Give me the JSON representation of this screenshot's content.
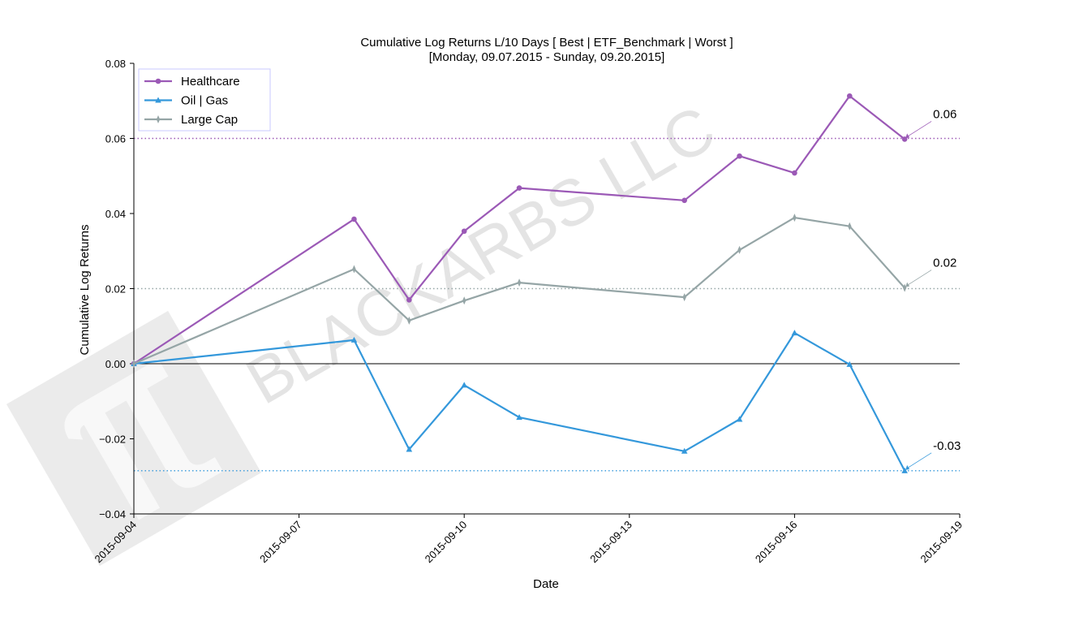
{
  "chart_data": {
    "type": "line",
    "title_line1": "Cumulative Log Returns L/10 Days [ Best | ETF_Benchmark | Worst ]",
    "title_line2": "[Monday, 09.07.2015 - Sunday, 09.20.2015]",
    "xlabel": "Date",
    "ylabel": "Cumulative Log Returns",
    "x_ticks": [
      "2015-09-04",
      "2015-09-07",
      "2015-09-10",
      "2015-09-13",
      "2015-09-16",
      "2015-09-19"
    ],
    "x_range": [
      "2015-09-04",
      "2015-09-19"
    ],
    "y_ticks": [
      "0.08",
      "0.06",
      "0.04",
      "0.02",
      "0.00",
      "−0.02",
      "−0.04"
    ],
    "ylim": [
      -0.04,
      0.08
    ],
    "legend_position": "top-left",
    "series": [
      {
        "name": "Healthcare",
        "color": "#9b59b6",
        "marker": "circle",
        "x": [
          "2015-09-04",
          "2015-09-08",
          "2015-09-09",
          "2015-09-10",
          "2015-09-11",
          "2015-09-14",
          "2015-09-15",
          "2015-09-16",
          "2015-09-17",
          "2015-09-18"
        ],
        "y": [
          0.0,
          0.0385,
          0.017,
          0.0353,
          0.0468,
          0.0435,
          0.0553,
          0.0508,
          0.0713,
          0.0598
        ]
      },
      {
        "name": "Oil | Gas",
        "color": "#3498db",
        "marker": "triangle",
        "x": [
          "2015-09-04",
          "2015-09-08",
          "2015-09-09",
          "2015-09-10",
          "2015-09-11",
          "2015-09-14",
          "2015-09-15",
          "2015-09-16",
          "2015-09-17",
          "2015-09-18"
        ],
        "y": [
          0.0,
          0.0063,
          -0.0228,
          -0.0057,
          -0.0143,
          -0.0233,
          -0.0148,
          0.0082,
          -0.0002,
          -0.0285
        ]
      },
      {
        "name": "Large Cap",
        "color": "#95a5a6",
        "marker": "thin-diamond",
        "x": [
          "2015-09-04",
          "2015-09-08",
          "2015-09-09",
          "2015-09-10",
          "2015-09-11",
          "2015-09-14",
          "2015-09-15",
          "2015-09-16",
          "2015-09-17",
          "2015-09-18"
        ],
        "y": [
          0.0,
          0.0252,
          0.0115,
          0.0168,
          0.0216,
          0.0177,
          0.0303,
          0.0389,
          0.0366,
          0.0202
        ]
      }
    ],
    "reference_lines": [
      {
        "y": 0.06,
        "color": "#9b59b6",
        "style": "dotted"
      },
      {
        "y": 0.02,
        "color": "#95a5a6",
        "style": "dotted"
      },
      {
        "y": -0.0285,
        "color": "#3498db",
        "style": "dotted"
      },
      {
        "y": 0.0,
        "color": "#000000",
        "style": "solid"
      }
    ],
    "annotations": [
      {
        "text": "0.06",
        "series": "Healthcare",
        "x": "2015-09-18",
        "y": 0.0598
      },
      {
        "text": "0.02",
        "series": "Large Cap",
        "x": "2015-09-18",
        "y": 0.0202
      },
      {
        "text": "-0.03",
        "series": "Oil | Gas",
        "x": "2015-09-18",
        "y": -0.0285
      }
    ],
    "grid": false
  },
  "watermark": {
    "text": "BLACKARBS LLC",
    "logo_icon": "pi-logo-icon"
  }
}
